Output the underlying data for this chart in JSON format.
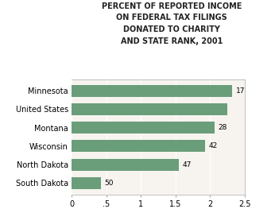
{
  "title_lines": [
    "PERCENT OF REPORTED INCOME",
    "ON FEDERAL TAX FILINGS",
    "DONATED TO CHARITY",
    "AND STATE RANK, 2001"
  ],
  "categories": [
    "Minnesota",
    "United States",
    "Montana",
    "Wisconsin",
    "North Dakota",
    "South Dakota"
  ],
  "values": [
    2.32,
    2.25,
    2.06,
    1.93,
    1.55,
    0.42
  ],
  "rank_labels": [
    "17",
    "",
    "28",
    "42",
    "47",
    "50"
  ],
  "bar_color": "#6a9e7a",
  "background_color": "#ffffff",
  "plot_bg_color": "#f7f4ef",
  "grid_color": "#ffffff",
  "xlim": [
    0,
    2.5
  ],
  "xticks": [
    0,
    0.5,
    1.0,
    1.5,
    2.0,
    2.5
  ],
  "xticklabels": [
    "0",
    ".5",
    "1",
    "1.5",
    "2",
    "2.5"
  ],
  "title_fontsize": 7.0,
  "label_fontsize": 7.0,
  "tick_fontsize": 7.0,
  "rank_fontsize": 6.5
}
